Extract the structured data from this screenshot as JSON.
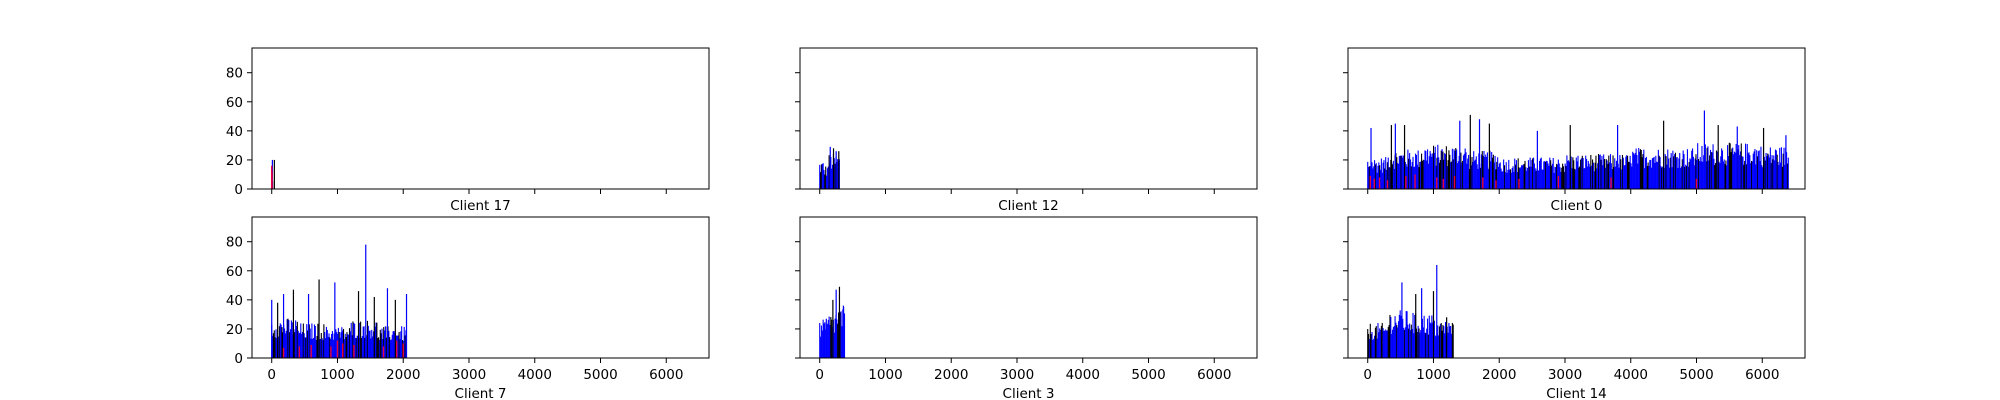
{
  "chart_data": {
    "type": "bar",
    "grid": false,
    "legend": "none",
    "xlim": [
      -300,
      6650
    ],
    "ylim": [
      0,
      97
    ],
    "xticks": [
      "0",
      "1000",
      "2000",
      "3000",
      "4000",
      "5000",
      "6000"
    ],
    "yticks": [
      "0",
      "20",
      "40",
      "60",
      "80"
    ],
    "colors": {
      "primary": "#0000ff",
      "secondary": "#000000",
      "highlight": "#e8003a"
    },
    "panels": [
      {
        "title": "Client 17",
        "show_x_ticklabels": false,
        "show_y_ticklabels": true,
        "profile": [
          [
            0,
            20,
            6
          ]
        ],
        "spikes": [
          [
            10,
            20
          ],
          [
            40,
            20
          ]
        ],
        "red": [
          [
            0,
            16
          ],
          [
            5,
            12
          ]
        ]
      },
      {
        "title": "Client 12",
        "show_x_ticklabels": false,
        "show_y_ticklabels": false,
        "profile": [
          [
            0,
            60,
            18
          ],
          [
            60,
            120,
            15
          ],
          [
            120,
            300,
            22
          ]
        ],
        "spikes": [
          [
            160,
            29
          ],
          [
            210,
            28
          ],
          [
            250,
            26
          ],
          [
            290,
            26
          ]
        ],
        "red": []
      },
      {
        "title": "Client 0",
        "show_x_ticklabels": false,
        "show_y_ticklabels": false,
        "profile": [
          [
            0,
            300,
            20
          ],
          [
            300,
            800,
            25
          ],
          [
            800,
            1500,
            28
          ],
          [
            1500,
            2000,
            24
          ],
          [
            2000,
            3000,
            20
          ],
          [
            3000,
            4000,
            22
          ],
          [
            4000,
            5000,
            26
          ],
          [
            5000,
            6000,
            29
          ],
          [
            6000,
            6400,
            27
          ]
        ],
        "spikes": [
          [
            50,
            42
          ],
          [
            360,
            44
          ],
          [
            420,
            45
          ],
          [
            560,
            44
          ],
          [
            1400,
            47
          ],
          [
            1560,
            51
          ],
          [
            1700,
            48
          ],
          [
            1850,
            45
          ],
          [
            2580,
            40
          ],
          [
            3080,
            44
          ],
          [
            3800,
            44
          ],
          [
            4500,
            47
          ],
          [
            5120,
            54
          ],
          [
            5330,
            44
          ],
          [
            5620,
            43
          ],
          [
            6020,
            42
          ],
          [
            6360,
            37
          ]
        ],
        "red": [
          [
            40,
            9
          ],
          [
            100,
            7
          ],
          [
            180,
            8
          ],
          [
            300,
            6
          ],
          [
            580,
            9
          ],
          [
            720,
            10
          ],
          [
            1050,
            8
          ],
          [
            1150,
            7
          ],
          [
            1320,
            9
          ],
          [
            1750,
            8
          ],
          [
            1950,
            6
          ],
          [
            2300,
            7
          ],
          [
            2900,
            9
          ],
          [
            3700,
            8
          ],
          [
            5000,
            7
          ]
        ]
      },
      {
        "title": "Client 7",
        "show_x_ticklabels": true,
        "show_y_ticklabels": true,
        "profile": [
          [
            0,
            400,
            25
          ],
          [
            400,
            800,
            22
          ],
          [
            800,
            1200,
            20
          ],
          [
            1200,
            1600,
            24
          ],
          [
            1600,
            2050,
            20
          ]
        ],
        "spikes": [
          [
            0,
            40
          ],
          [
            90,
            38
          ],
          [
            180,
            44
          ],
          [
            330,
            47
          ],
          [
            560,
            44
          ],
          [
            720,
            54
          ],
          [
            960,
            52
          ],
          [
            1320,
            46
          ],
          [
            1430,
            78
          ],
          [
            1560,
            42
          ],
          [
            1760,
            48
          ],
          [
            1880,
            40
          ],
          [
            2050,
            44
          ]
        ],
        "red": [
          [
            180,
            7
          ],
          [
            420,
            8
          ],
          [
            600,
            9
          ],
          [
            900,
            8
          ],
          [
            1000,
            12
          ],
          [
            1080,
            10
          ],
          [
            1250,
            9
          ],
          [
            1700,
            8
          ],
          [
            1900,
            12
          ],
          [
            2000,
            10
          ]
        ]
      },
      {
        "title": "Client 3",
        "show_x_ticklabels": true,
        "show_y_ticklabels": false,
        "profile": [
          [
            0,
            120,
            24
          ],
          [
            120,
            240,
            28
          ],
          [
            240,
            380,
            32
          ]
        ],
        "spikes": [
          [
            100,
            27
          ],
          [
            200,
            40
          ],
          [
            250,
            47
          ],
          [
            300,
            49
          ],
          [
            360,
            36
          ]
        ],
        "red": []
      },
      {
        "title": "Client 14",
        "show_x_ticklabels": true,
        "show_y_ticklabels": false,
        "profile": [
          [
            0,
            300,
            22
          ],
          [
            300,
            700,
            30
          ],
          [
            700,
            1000,
            28
          ],
          [
            1000,
            1300,
            24
          ]
        ],
        "spikes": [
          [
            520,
            52
          ],
          [
            730,
            44
          ],
          [
            820,
            48
          ],
          [
            1000,
            46
          ],
          [
            1050,
            64
          ],
          [
            1200,
            28
          ]
        ],
        "red": []
      }
    ]
  }
}
